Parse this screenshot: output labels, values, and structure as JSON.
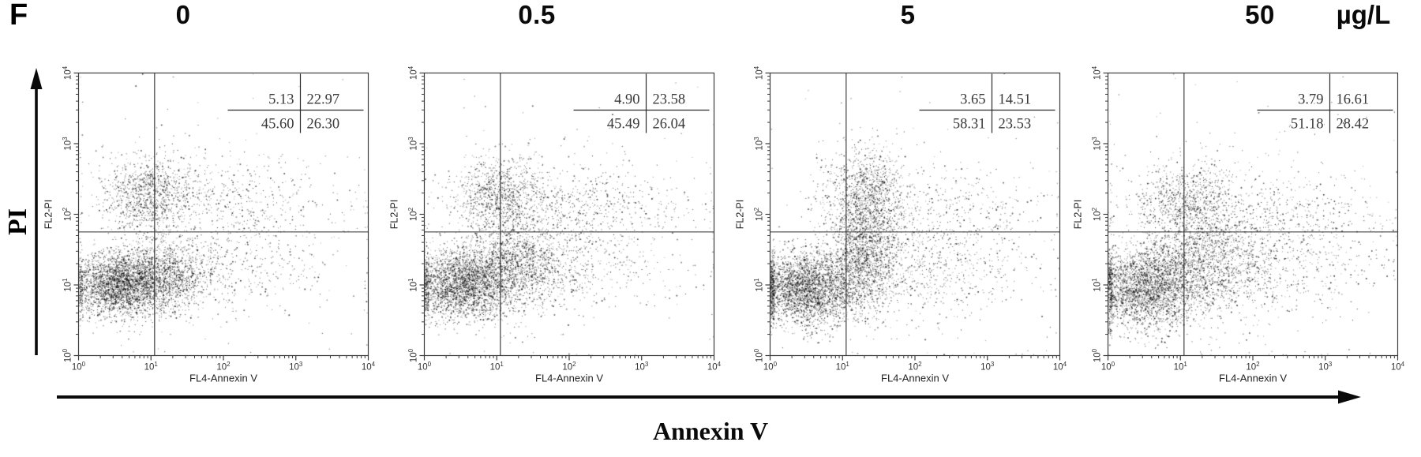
{
  "figure": {
    "panel_label": "F",
    "unit_label": "µg/L",
    "y_axis_arrow_label": "PI",
    "x_axis_arrow_label": "Annexin V"
  },
  "colors": {
    "background": "#ffffff",
    "points": "#0d0d0d",
    "axis": "#3c3c3c",
    "gate_lines": "#2f2f2f",
    "stats_text": "#3a3a3a",
    "text": "#000000"
  },
  "chart_data": {
    "type": "scatter",
    "subtype": "flow-cytometry-annexinV-PI",
    "title": "",
    "grid": false,
    "legend": false,
    "x_axis": {
      "label": "FL4-Annexin V",
      "scale": "log",
      "tick_exponents": [
        0,
        1,
        2,
        3,
        4
      ],
      "tick_base": "10",
      "range_decades": [
        0,
        4
      ]
    },
    "y_axis": {
      "label": "FL2-PI",
      "scale": "log",
      "tick_exponents": [
        0,
        1,
        2,
        3,
        4
      ],
      "tick_base": "10",
      "range_decades": [
        0,
        4
      ]
    },
    "quadrant_gates": {
      "x_decade": 1.05,
      "y_decade": 1.75
    },
    "cluster_format": "[n_points, center_x_decade, center_y_decade, sigma_x_decade, sigma_y_decade]",
    "panels": [
      {
        "concentration": "0",
        "quadrants": {
          "upper_left": "5.13",
          "upper_right": "22.97",
          "lower_left": "45.60",
          "lower_right": "26.30"
        },
        "seed": 11,
        "clusters": [
          [
            2600,
            0.55,
            1.0,
            0.33,
            0.22
          ],
          [
            1300,
            1.15,
            1.12,
            0.3,
            0.26
          ],
          [
            1000,
            0.95,
            2.3,
            0.3,
            0.28
          ],
          [
            420,
            2.1,
            2.2,
            0.7,
            0.3
          ],
          [
            480,
            2.0,
            1.3,
            0.7,
            0.33
          ],
          [
            260,
            2.0,
            1.8,
            1.2,
            0.9
          ]
        ]
      },
      {
        "concentration": "0.5",
        "quadrants": {
          "upper_left": "4.90",
          "upper_right": "23.58",
          "lower_left": "45.49",
          "lower_right": "26.04"
        },
        "seed": 22,
        "clusters": [
          [
            2500,
            0.5,
            1.0,
            0.33,
            0.24
          ],
          [
            1400,
            1.2,
            1.25,
            0.38,
            0.3
          ],
          [
            1050,
            1.05,
            2.25,
            0.33,
            0.3
          ],
          [
            500,
            2.2,
            2.1,
            0.7,
            0.25
          ],
          [
            480,
            2.0,
            1.3,
            0.7,
            0.33
          ],
          [
            260,
            2.0,
            1.8,
            1.2,
            0.9
          ]
        ]
      },
      {
        "concentration": "5",
        "quadrants": {
          "upper_left": "3.65",
          "upper_right": "14.51",
          "lower_left": "58.31",
          "lower_right": "23.53"
        },
        "seed": 33,
        "clusters": [
          [
            3000,
            0.5,
            0.95,
            0.38,
            0.26
          ],
          [
            1700,
            1.3,
            1.5,
            0.25,
            0.45
          ],
          [
            850,
            1.35,
            2.35,
            0.28,
            0.3
          ],
          [
            600,
            2.1,
            1.2,
            0.7,
            0.35
          ],
          [
            350,
            2.4,
            2.0,
            0.65,
            0.3
          ],
          [
            260,
            2.0,
            1.8,
            1.2,
            0.9
          ]
        ]
      },
      {
        "concentration": "50",
        "quadrants": {
          "upper_left": "3.79",
          "upper_right": "16.61",
          "lower_left": "51.18",
          "lower_right": "28.42"
        },
        "seed": 44,
        "clusters": [
          [
            2600,
            0.5,
            0.95,
            0.4,
            0.28
          ],
          [
            1400,
            1.25,
            1.3,
            0.45,
            0.35
          ],
          [
            850,
            1.1,
            2.15,
            0.35,
            0.3
          ],
          [
            650,
            2.2,
            1.3,
            0.75,
            0.4
          ],
          [
            400,
            2.3,
            2.0,
            0.7,
            0.28
          ],
          [
            280,
            2.0,
            1.8,
            1.2,
            0.9
          ]
        ]
      }
    ]
  }
}
